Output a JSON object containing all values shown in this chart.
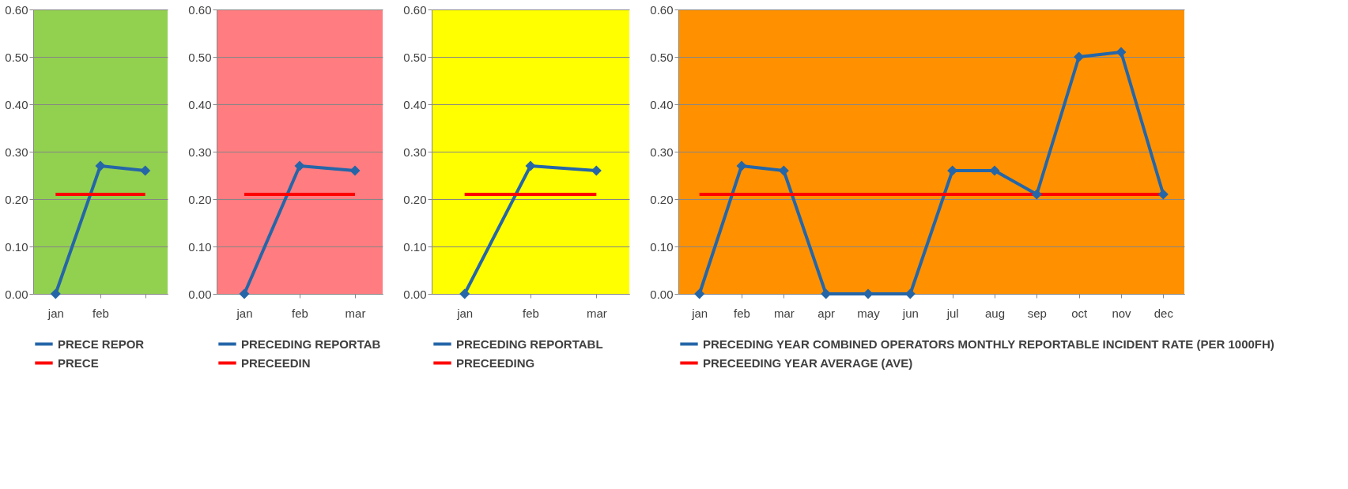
{
  "chart_data": [
    {
      "type": "line",
      "categories": [
        "jan",
        "feb",
        null
      ],
      "series": [
        {
          "name": "PRECE REPOR",
          "color": "#2566a8",
          "marker": "diamond",
          "values": [
            0,
            0.27,
            0.26
          ]
        },
        {
          "name": "PRECE",
          "color": "#ff0000",
          "marker": "none",
          "values": [
            0.21,
            0.21,
            0.21
          ]
        }
      ],
      "ylim": [
        0,
        0.6
      ],
      "yticks": [
        {
          "value": 0,
          "label": "0.00"
        },
        {
          "value": 0.1,
          "label": "0.10"
        },
        {
          "value": 0.2,
          "label": "0.20"
        },
        {
          "value": 0.3,
          "label": "0.30"
        },
        {
          "value": 0.4,
          "label": "0.40"
        },
        {
          "value": 0.5,
          "label": "0.50"
        },
        {
          "value": 0.6,
          "label": "0.60"
        }
      ],
      "grid": "y",
      "legend": "bottom"
    },
    {
      "type": "line",
      "categories": [
        "jan",
        "feb",
        "mar"
      ],
      "series": [
        {
          "name": "PRECEDING REPORTAB",
          "color": "#2566a8",
          "marker": "diamond",
          "values": [
            0,
            0.27,
            0.26
          ]
        },
        {
          "name": "PRECEEDIN",
          "color": "#ff0000",
          "marker": "none",
          "values": [
            0.21,
            0.21,
            0.21
          ]
        }
      ],
      "ylim": [
        0,
        0.6
      ],
      "yticks": [
        {
          "value": 0,
          "label": "0.00"
        },
        {
          "value": 0.1,
          "label": "0.10"
        },
        {
          "value": 0.2,
          "label": "0.20"
        },
        {
          "value": 0.3,
          "label": "0.30"
        },
        {
          "value": 0.4,
          "label": "0.40"
        },
        {
          "value": 0.5,
          "label": "0.50"
        },
        {
          "value": 0.6,
          "label": "0.60"
        }
      ],
      "grid": "y",
      "legend": "bottom"
    },
    {
      "type": "line",
      "categories": [
        "jan",
        "feb",
        "mar"
      ],
      "series": [
        {
          "name": "PRECEDING REPORTABL",
          "color": "#2566a8",
          "marker": "diamond",
          "values": [
            0,
            0.27,
            0.26
          ]
        },
        {
          "name": "PRECEEDING",
          "color": "#ff0000",
          "marker": "none",
          "values": [
            0.21,
            0.21,
            0.21
          ]
        }
      ],
      "ylim": [
        0,
        0.6
      ],
      "yticks": [
        {
          "value": 0,
          "label": "0.00"
        },
        {
          "value": 0.1,
          "label": "0.10"
        },
        {
          "value": 0.2,
          "label": "0.20"
        },
        {
          "value": 0.3,
          "label": "0.30"
        },
        {
          "value": 0.4,
          "label": "0.40"
        },
        {
          "value": 0.5,
          "label": "0.50"
        },
        {
          "value": 0.6,
          "label": "0.60"
        }
      ],
      "grid": "y",
      "legend": "bottom"
    },
    {
      "type": "line",
      "categories": [
        "jan",
        "feb",
        "mar",
        "apr",
        "may",
        "jun",
        "jul",
        "aug",
        "sep",
        "oct",
        "nov",
        "dec"
      ],
      "series": [
        {
          "name": "PRECEDING YEAR COMBINED OPERATORS MONTHLY REPORTABLE INCIDENT RATE (PER 1000FH)",
          "color": "#2566a8",
          "marker": "diamond",
          "values": [
            0,
            0.27,
            0.26,
            0,
            0,
            0,
            0.26,
            0.26,
            0.21,
            0.5,
            0.51,
            0.21
          ]
        },
        {
          "name": "PRECEEDING YEAR AVERAGE (AVE)",
          "color": "#ff0000",
          "marker": "none",
          "values": [
            0.21,
            0.21,
            0.21,
            0.21,
            0.21,
            0.21,
            0.21,
            0.21,
            0.21,
            0.21,
            0.21,
            0.21
          ]
        }
      ],
      "ylim": [
        0,
        0.6
      ],
      "yticks": [
        {
          "value": 0,
          "label": "0.00"
        },
        {
          "value": 0.1,
          "label": "0.10"
        },
        {
          "value": 0.2,
          "label": "0.20"
        },
        {
          "value": 0.3,
          "label": "0.30"
        },
        {
          "value": 0.4,
          "label": "0.40"
        },
        {
          "value": 0.5,
          "label": "0.50"
        },
        {
          "value": 0.6,
          "label": "0.60"
        }
      ],
      "grid": "y",
      "legend": "bottom"
    }
  ]
}
